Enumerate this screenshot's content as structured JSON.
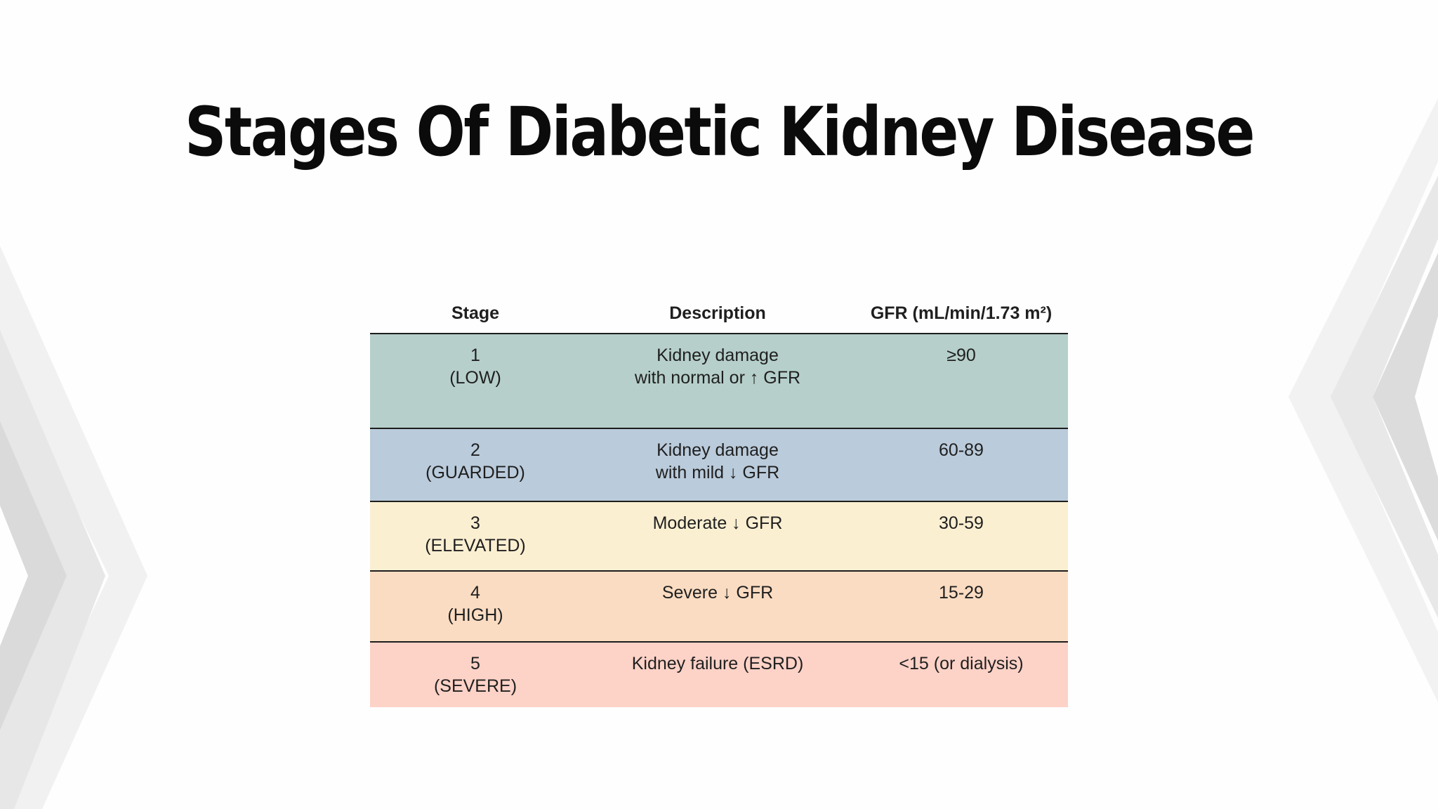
{
  "slide": {
    "title": "Stages Of Diabetic Kidney Disease"
  },
  "table": {
    "headers": {
      "stage": "Stage",
      "description": "Description",
      "gfr": "GFR (mL/min/1.73 m²)"
    },
    "rows": [
      {
        "stage_number": "1",
        "stage_label": "(LOW)",
        "description_line1": "Kidney damage",
        "description_line2": "with normal or ↑ GFR",
        "gfr": "≥90",
        "color": "#b6cfca"
      },
      {
        "stage_number": "2",
        "stage_label": "(GUARDED)",
        "description_line1": "Kidney damage",
        "description_line2": "with mild ↓ GFR",
        "gfr": "60-89",
        "color": "#bacbdb"
      },
      {
        "stage_number": "3",
        "stage_label": "(ELEVATED)",
        "description_line1": "Moderate ↓ GFR",
        "description_line2": "",
        "gfr": "30-59",
        "color": "#fbefd2"
      },
      {
        "stage_number": "4",
        "stage_label": "(HIGH)",
        "description_line1": "Severe ↓ GFR",
        "description_line2": "",
        "gfr": "15-29",
        "color": "#fadcc2"
      },
      {
        "stage_number": "5",
        "stage_label": "(SEVERE)",
        "description_line1": "Kidney failure (ESRD)",
        "description_line2": "",
        "gfr": "<15 (or dialysis)",
        "color": "#fdd2c7"
      }
    ]
  }
}
